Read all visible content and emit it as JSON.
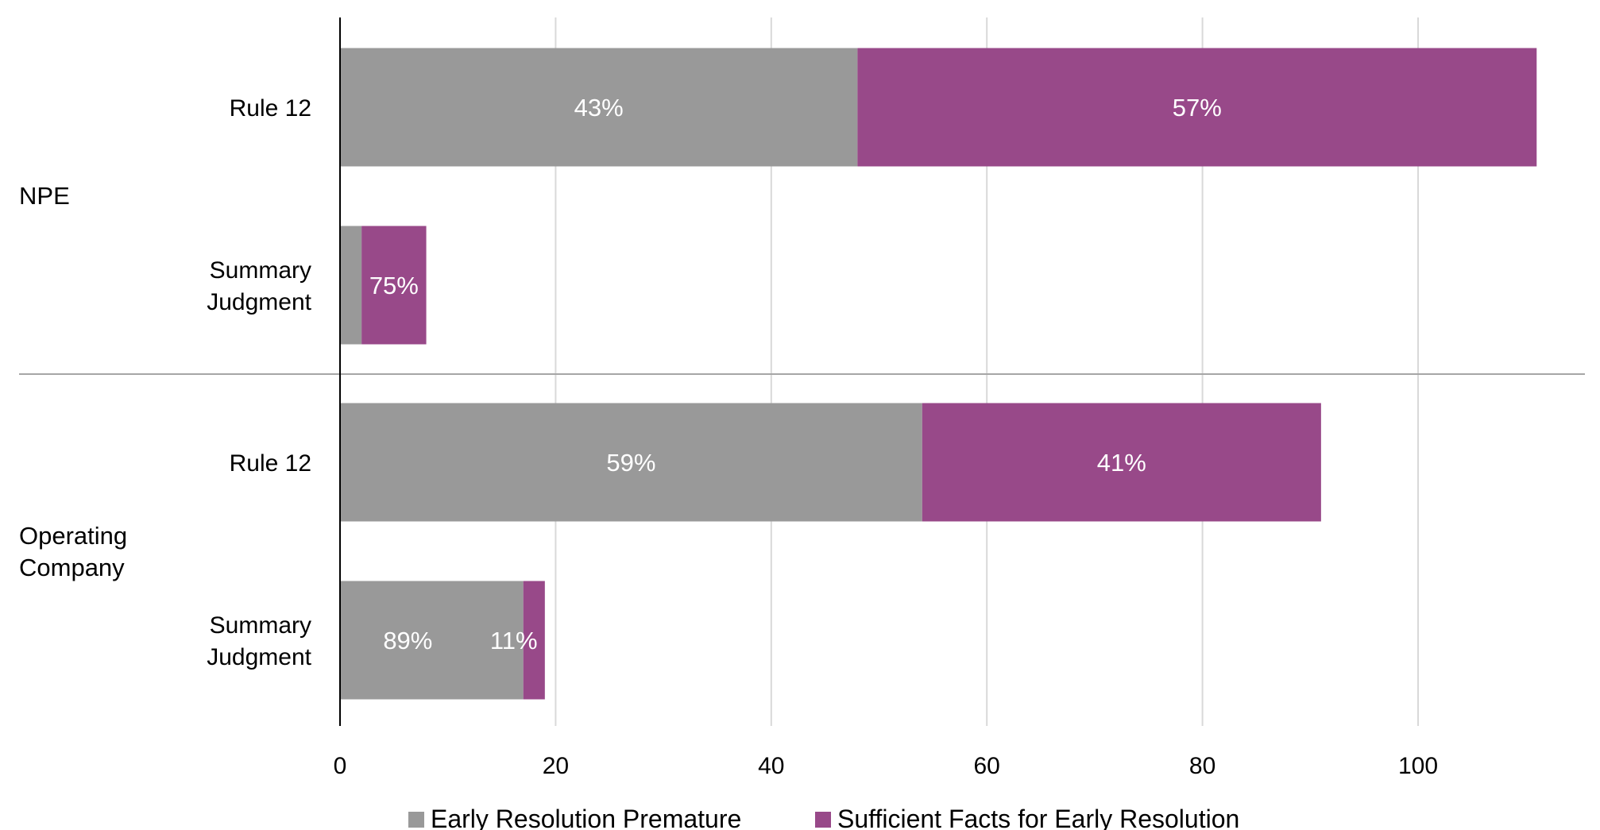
{
  "chart_data": {
    "type": "bar",
    "orientation": "horizontal",
    "stacked": true,
    "xlim": [
      0,
      120
    ],
    "xticks": [
      "0",
      "20",
      "40",
      "60",
      "80",
      "100"
    ],
    "xtick_values": [
      0,
      20,
      40,
      60,
      80,
      100
    ],
    "grid": true,
    "legend_position": "bottom",
    "groups": [
      {
        "name": "NPE",
        "categories": [
          {
            "label_lines": [
              "Rule 12"
            ],
            "values": [
              48,
              63
            ],
            "labels": [
              "43%",
              "57%"
            ]
          },
          {
            "label_lines": [
              "Summary",
              "Judgment"
            ],
            "values": [
              2,
              6
            ],
            "labels": [
              "",
              "75%"
            ]
          }
        ]
      },
      {
        "name_lines": [
          "Operating",
          "Company"
        ],
        "categories": [
          {
            "label_lines": [
              "Rule 12"
            ],
            "values": [
              54,
              37
            ],
            "labels": [
              "59%",
              "41%"
            ]
          },
          {
            "label_lines": [
              "Summary",
              "Judgment"
            ],
            "values": [
              17,
              2
            ],
            "labels": [
              "89%",
              "11%"
            ]
          }
        ]
      }
    ],
    "series": [
      {
        "name": "Early Resolution Premature",
        "color": "#999999"
      },
      {
        "name": "Sufficient Facts for Early Resolution",
        "color": "#984989"
      }
    ]
  }
}
